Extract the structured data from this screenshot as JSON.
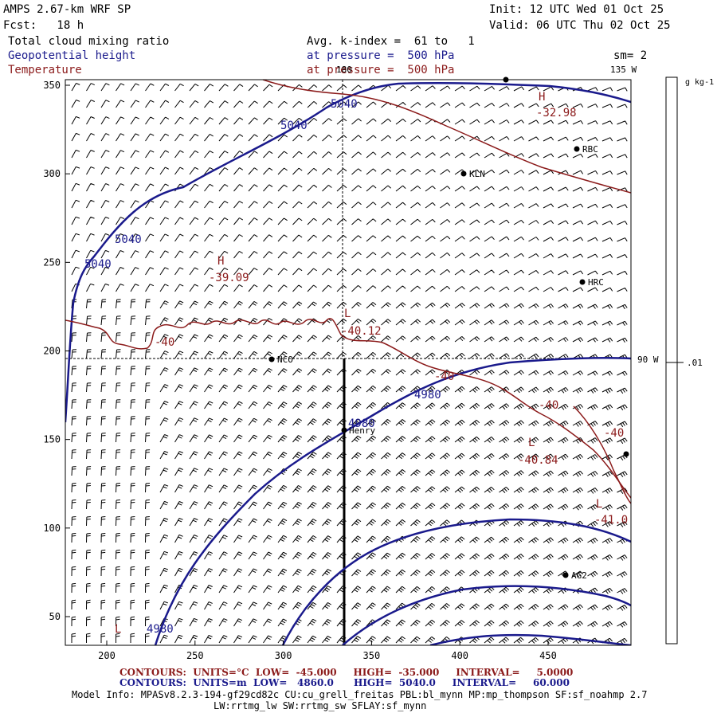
{
  "header": {
    "model": "AMPS 2.67-km WRF SP",
    "fcst": "Fcst:   18 h",
    "init": "Init: 12 UTC Wed 01 Oct 25",
    "valid": "Valid: 06 UTC Thu 02 Oct 25",
    "field1": "Total cloud mixing ratio",
    "field2": "Geopotential height",
    "field3": "Temperature",
    "avg": "Avg. k-index =  61 to   1",
    "pres1": "at pressure =  500 hPa",
    "pres2": "at pressure =  500 hPa",
    "sm": "sm= 2"
  },
  "meridians": {
    "m180": "180",
    "m135": "135 W",
    "m90": "90 W"
  },
  "axes": {
    "x_ticks": [
      "200",
      "250",
      "300",
      "350",
      "400",
      "450"
    ],
    "y_ticks": [
      "350",
      "300",
      "250",
      "200",
      "150",
      "100",
      "50"
    ]
  },
  "colorbar": {
    "unit": "g kg-1",
    "value": ".01"
  },
  "stations": [
    "RBC",
    "KLN",
    "HRC",
    "NCO",
    "Henry",
    "AG2"
  ],
  "height_labels": [
    "5040",
    "5040",
    "5040",
    "5040",
    "4980",
    "4980",
    "4980"
  ],
  "temp_labels": [
    "H",
    "-32.98",
    "H",
    "-39.09",
    "L",
    "-40.12",
    "-40",
    "-40",
    "-40",
    "-40",
    "L",
    "-40.84",
    "L",
    "-41.0",
    "L"
  ],
  "footer": {
    "c1_label": "CONTOURS:",
    "c1_units": "UNITS=°C",
    "c1_low": "LOW=  -45.000",
    "c1_high": "HIGH=  -35.000",
    "c1_int": "INTERVAL=     5.0000",
    "c2_label": "CONTOURS:",
    "c2_units": "UNITS=m",
    "c2_low": "LOW=   4860.0",
    "c2_high": "HIGH=  5040.0",
    "c2_int": "INTERVAL=     60.000",
    "model_info": "Model Info: MPASv8.2.3-194-gf29cd82c CU:cu_grell_freitas PBL:bl_mynn MP:mp_thompson SF:sf_noahmp 2.7",
    "model_info2": "LW:rrtmg_lw SW:rrtmg_sw SFLAY:sf_mynn"
  },
  "colors": {
    "height": "#1a1a8c",
    "temperature": "#8b1a1a",
    "text": "#000000"
  }
}
